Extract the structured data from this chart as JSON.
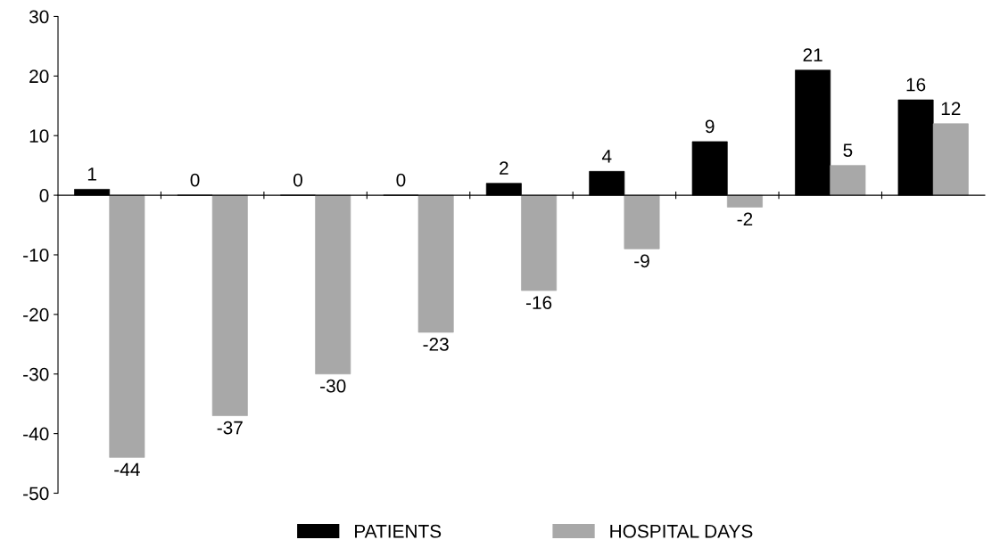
{
  "chart_data": {
    "type": "bar",
    "categories": [
      null,
      null,
      null,
      null,
      null,
      null,
      null,
      null,
      null
    ],
    "series": [
      {
        "name": "PATIENTS",
        "color": "#000000",
        "values": [
          1,
          0,
          0,
          0,
          2,
          4,
          9,
          21,
          16
        ]
      },
      {
        "name": "HOSPITAL DAYS",
        "color": "#a8a8a8",
        "values": [
          -44,
          -37,
          -30,
          -23,
          -16,
          -9,
          -2,
          5,
          12
        ]
      }
    ],
    "ylim": [
      -50,
      30
    ],
    "yticks": [
      -50,
      -40,
      -30,
      -20,
      -10,
      0,
      10,
      20,
      30
    ],
    "data_labels": true,
    "legend": "bottom"
  }
}
